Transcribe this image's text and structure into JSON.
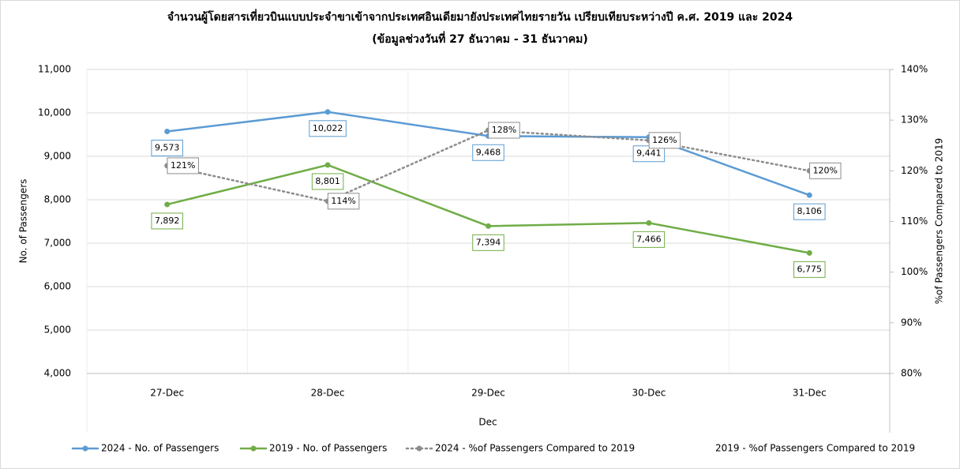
{
  "chart_data": {
    "type": "line",
    "title": "จำนวนผู้โดยสารเที่ยวบินแบบประจำขาเข้าจากประเทศอินเดียมายังประเทศไทยรายวัน เปรียบเทียบระหว่างปี ค.ศ. 2019 และ 2024",
    "subtitle": "(ข้อมูลช่วงวันที่ 27 ธันวาคม - 31 ธันวาคม)",
    "x_label": "Dec",
    "y_label": "No. of Passengers",
    "y2_label": "%of Passengers Compared to 2019",
    "categories": [
      "27-Dec",
      "28-Dec",
      "29-Dec",
      "30-Dec",
      "31-Dec"
    ],
    "series": [
      {
        "name": "2024 - No. of Passengers",
        "color": "#5b9bd5",
        "values": [
          9573,
          10022,
          9468,
          9441,
          8106
        ],
        "value_labels": [
          "9,573",
          "10,022",
          "9,468",
          "9,441",
          "8,106"
        ]
      },
      {
        "name": "2019 - No. of Passengers",
        "color": "#70ad47",
        "values": [
          7892,
          8801,
          7394,
          7466,
          6775
        ],
        "value_labels": [
          "7,892",
          "8,801",
          "7,394",
          "7,466",
          "6,775"
        ]
      },
      {
        "name": "2024 - %of Passengers Compared to 2019",
        "color": "#8c8c8c",
        "axis": "y2",
        "line_style": "dotted",
        "values": [
          121,
          114,
          128,
          126,
          120
        ],
        "value_labels": [
          "121%",
          "114%",
          "128%",
          "126%",
          "120%"
        ]
      },
      {
        "name": "2019 - %of Passengers Compared to 2019",
        "color": "none",
        "axis": "y2",
        "values": [
          null,
          null,
          null,
          null,
          null
        ]
      }
    ],
    "ylim": [
      4000,
      11000
    ],
    "yticks": [
      {
        "value": 4000,
        "label": "4,000"
      },
      {
        "value": 5000,
        "label": "5,000"
      },
      {
        "value": 6000,
        "label": "6,000"
      },
      {
        "value": 7000,
        "label": "7,000"
      },
      {
        "value": 8000,
        "label": "8,000"
      },
      {
        "value": 9000,
        "label": "9,000"
      },
      {
        "value": 10000,
        "label": "10,000"
      },
      {
        "value": 11000,
        "label": "11,000"
      }
    ],
    "y2lim": [
      80,
      140
    ],
    "y2ticks": [
      {
        "value": 80,
        "label": "80%"
      },
      {
        "value": 90,
        "label": "90%"
      },
      {
        "value": 100,
        "label": "100%"
      },
      {
        "value": 110,
        "label": "110%"
      },
      {
        "value": 120,
        "label": "120%"
      },
      {
        "value": 130,
        "label": "130%"
      },
      {
        "value": 140,
        "label": "140%"
      }
    ],
    "grid": true,
    "legend": "bottom"
  }
}
